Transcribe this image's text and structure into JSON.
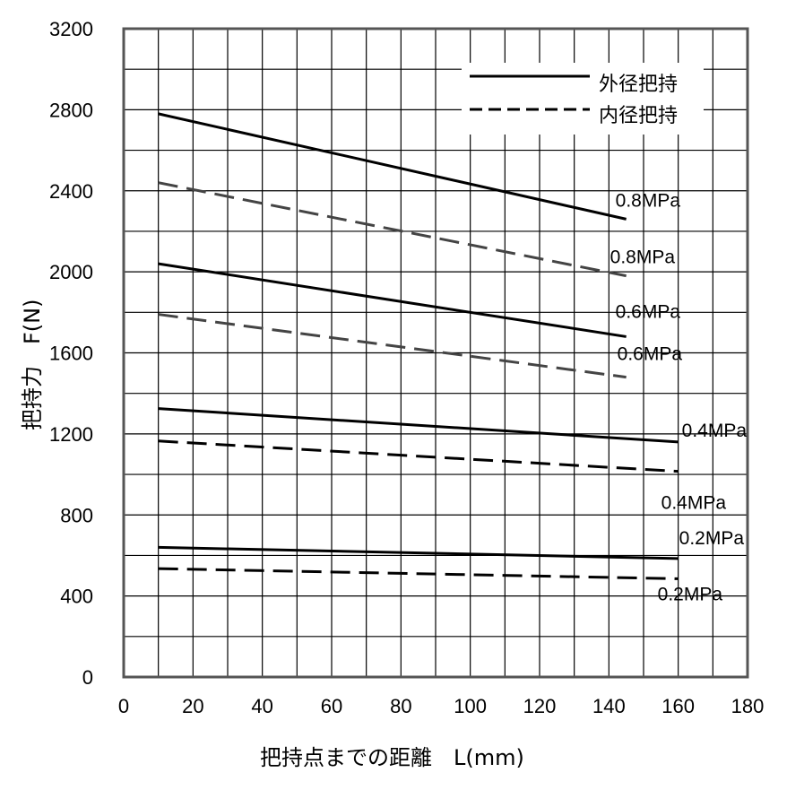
{
  "chart_data": {
    "type": "line",
    "title": "",
    "xlabel": "把持点までの距離　L(mm)",
    "ylabel": "把持力　F(N)",
    "xlim": [
      0,
      180
    ],
    "ylim": [
      0,
      3200
    ],
    "xticks": [
      0,
      20,
      40,
      60,
      80,
      100,
      120,
      140,
      160,
      180
    ],
    "yticks": [
      0,
      400,
      800,
      1200,
      1600,
      2000,
      2400,
      2800,
      3200
    ],
    "xtick_labels": [
      "0",
      "20",
      "40",
      "60",
      "80",
      "100",
      "120",
      "140",
      "160",
      "180"
    ],
    "ytick_labels": [
      "0",
      "400",
      "800",
      "1200",
      "1600",
      "2000",
      "2400",
      "2800",
      "3200"
    ],
    "grid": true,
    "legend_position": "top-right",
    "legend": [
      {
        "label": "外径把持",
        "style": "solid"
      },
      {
        "label": "内径把持",
        "style": "dashed"
      }
    ],
    "series": [
      {
        "group": "外径把持",
        "style": "solid",
        "color": "#000000",
        "x": [
          10,
          145
        ],
        "y": [
          2780,
          2260
        ],
        "label": "0.8MPa"
      },
      {
        "group": "内径把持",
        "style": "dashed",
        "color": "#444444",
        "x": [
          10,
          145
        ],
        "y": [
          2440,
          1980
        ],
        "label": "0.8MPa"
      },
      {
        "group": "外径把持",
        "style": "solid",
        "color": "#000000",
        "x": [
          10,
          145
        ],
        "y": [
          2040,
          1680
        ],
        "label": "0.6MPa"
      },
      {
        "group": "内径把持",
        "style": "dashed",
        "color": "#444444",
        "x": [
          10,
          145
        ],
        "y": [
          1790,
          1480
        ],
        "label": "0.6MPa"
      },
      {
        "group": "外径把持",
        "style": "solid",
        "color": "#000000",
        "x": [
          10,
          160
        ],
        "y": [
          1325,
          1160
        ],
        "label": "0.4MPa"
      },
      {
        "group": "内径把持",
        "style": "dashed",
        "color": "#000000",
        "x": [
          10,
          160
        ],
        "y": [
          1165,
          1015
        ],
        "label": "0.4MPa"
      },
      {
        "group": "外径把持",
        "style": "solid",
        "color": "#000000",
        "x": [
          10,
          160
        ],
        "y": [
          640,
          585
        ],
        "label": "0.2MPa"
      },
      {
        "group": "内径把持",
        "style": "dashed",
        "color": "#000000",
        "x": [
          10,
          160
        ],
        "y": [
          535,
          485
        ],
        "label": "0.2MPa"
      }
    ]
  }
}
